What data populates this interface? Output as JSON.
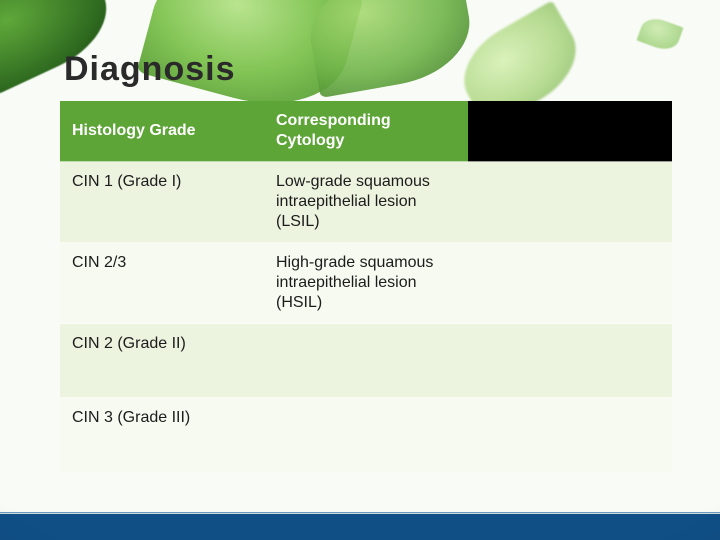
{
  "title": "Diagnosis",
  "colors": {
    "header_bg": "#5da537",
    "header_text": "#ffffff",
    "header_blank_bg": "#000000",
    "row_odd_bg": "#ecf3de",
    "row_even_bg": "#f7faf1",
    "cell_text": "#1c1c1c",
    "footer_bar": "#0f4f86",
    "page_bg": "#f9fbf7"
  },
  "headers": {
    "col1": "Histology Grade",
    "col2": "Corresponding Cytology",
    "col3": ""
  },
  "rows": [
    {
      "c1": "CIN 1 (Grade I)",
      "c2": "Low-grade squamous intraepithelial lesion (LSIL)",
      "c3": ""
    },
    {
      "c1": "CIN 2/3",
      "c2": "High-grade squamous intraepithelial lesion (HSIL)",
      "c3": ""
    },
    {
      "c1": "CIN 2 (Grade II)",
      "c2": "",
      "c3": ""
    },
    {
      "c1": "CIN 3 (Grade III)",
      "c2": "",
      "c3": ""
    }
  ]
}
